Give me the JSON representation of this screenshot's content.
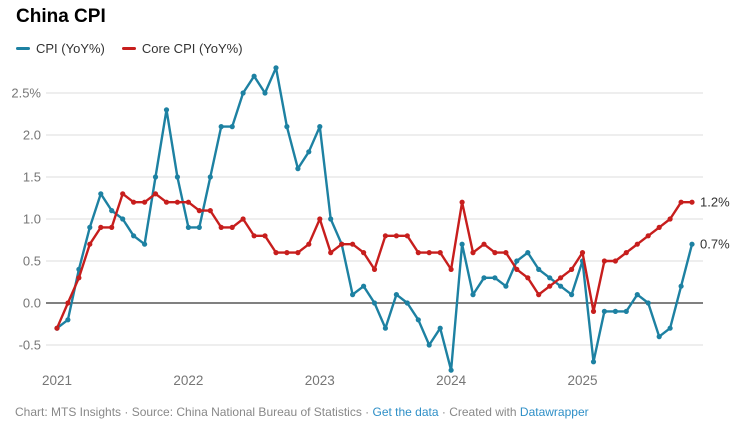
{
  "header": {
    "title": "China CPI"
  },
  "legend": {
    "items": [
      {
        "label": "CPI (YoY%)",
        "color": "#1d81a2"
      },
      {
        "label": "Core CPI (YoY%)",
        "color": "#c71e1d"
      }
    ]
  },
  "chart_data": {
    "type": "line",
    "title": "China CPI",
    "x_frequency": "monthly",
    "x_start": "2021-01",
    "x_end": "2025-11",
    "x_tick_labels": [
      "2021",
      "2022",
      "2023",
      "2024",
      "2025"
    ],
    "y_tick_labels": [
      "2.5%",
      "2.0",
      "1.5",
      "1.0",
      "0.5",
      "0.0",
      "-0.5"
    ],
    "y_tick_values": [
      2.5,
      2.0,
      1.5,
      1.0,
      0.5,
      0.0,
      -0.5
    ],
    "ylim": [
      -0.9,
      2.9
    ],
    "grid": "horizontal",
    "zero_line": true,
    "legend_position": "top-left",
    "series": [
      {
        "name": "CPI (YoY%)",
        "color": "#1d81a2",
        "end_label": "0.7%",
        "values": [
          -0.3,
          -0.2,
          0.4,
          0.9,
          1.3,
          1.1,
          1.0,
          0.8,
          0.7,
          1.5,
          2.3,
          1.5,
          0.9,
          0.9,
          1.5,
          2.1,
          2.1,
          2.5,
          2.7,
          2.5,
          2.8,
          2.1,
          1.6,
          1.8,
          2.1,
          1.0,
          0.7,
          0.1,
          0.2,
          0.0,
          -0.3,
          0.1,
          0.0,
          -0.2,
          -0.5,
          -0.3,
          -0.8,
          0.7,
          0.1,
          0.3,
          0.3,
          0.2,
          0.5,
          0.6,
          0.4,
          0.3,
          0.2,
          0.1,
          0.5,
          -0.7,
          -0.1,
          -0.1,
          -0.1,
          0.1,
          0.0,
          -0.4,
          -0.3,
          0.2,
          0.7
        ]
      },
      {
        "name": "Core CPI (YoY%)",
        "color": "#c71e1d",
        "end_label": "1.2%",
        "values": [
          -0.3,
          0.0,
          0.3,
          0.7,
          0.9,
          0.9,
          1.3,
          1.2,
          1.2,
          1.3,
          1.2,
          1.2,
          1.2,
          1.1,
          1.1,
          0.9,
          0.9,
          1.0,
          0.8,
          0.8,
          0.6,
          0.6,
          0.6,
          0.7,
          1.0,
          0.6,
          0.7,
          0.7,
          0.6,
          0.4,
          0.8,
          0.8,
          0.8,
          0.6,
          0.6,
          0.6,
          0.4,
          1.2,
          0.6,
          0.7,
          0.6,
          0.6,
          0.4,
          0.3,
          0.1,
          0.2,
          0.3,
          0.4,
          0.6,
          -0.1,
          0.5,
          0.5,
          0.6,
          0.7,
          0.8,
          0.9,
          1.0,
          1.2,
          1.2
        ]
      }
    ]
  },
  "footer": {
    "link_color": "#2e8fc7",
    "text_color": "#888888",
    "parts": [
      {
        "type": "text",
        "text": "Chart: MTS Insights · Source: China National Bureau of Statistics · "
      },
      {
        "type": "link",
        "text": "Get the data"
      },
      {
        "type": "text",
        "text": " · Created with "
      },
      {
        "type": "link",
        "text": "Datawrapper"
      }
    ]
  }
}
